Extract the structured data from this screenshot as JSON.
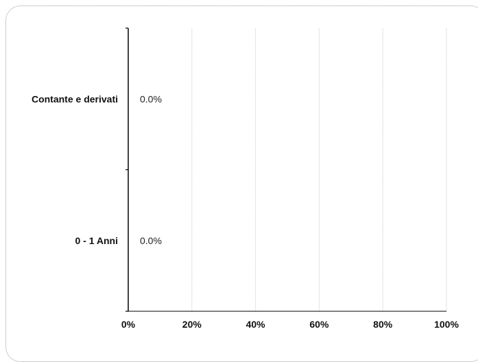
{
  "chart_data": {
    "type": "bar",
    "orientation": "horizontal",
    "categories": [
      "Contante e derivati",
      "0 - 1 Anni"
    ],
    "values": [
      0.0,
      0.0
    ],
    "data_labels": [
      "0.0%",
      "0.0%"
    ],
    "xlim": [
      0,
      100
    ],
    "x_ticks": [
      0,
      20,
      40,
      60,
      80,
      100
    ],
    "x_tick_labels": [
      "0%",
      "20%",
      "40%",
      "60%",
      "80%",
      "100%"
    ],
    "grid": "vertical",
    "grid_color": "#c8c8c8",
    "axis_color": "#000000",
    "bar_color": "#1f4e79",
    "title": "",
    "xlabel": "",
    "ylabel": ""
  }
}
